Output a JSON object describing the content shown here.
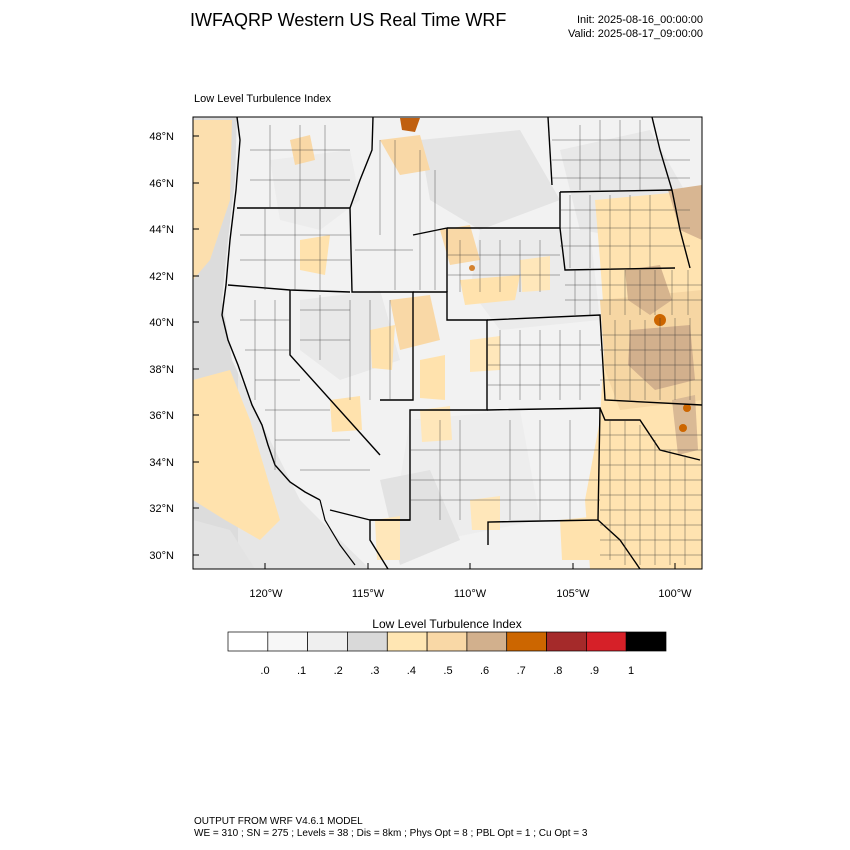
{
  "header": {
    "title": "IWFAQRP Western US Real Time WRF",
    "init": "Init: 2025-08-16_00:00:00",
    "valid": "Valid: 2025-08-17_09:00:00"
  },
  "map": {
    "subtitle": "Low Level Turbulence Index",
    "lat_labels": [
      "48°N",
      "46°N",
      "44°N",
      "42°N",
      "40°N",
      "38°N",
      "36°N",
      "34°N",
      "32°N",
      "30°N"
    ],
    "lon_labels": [
      "120°W",
      "115°W",
      "110°W",
      "105°W",
      "100°W"
    ]
  },
  "colorbar": {
    "title": "Low Level Turbulence Index",
    "labels": [
      ".0",
      ".1",
      ".2",
      ".3",
      ".4",
      ".5",
      ".6",
      ".7",
      ".8",
      ".9",
      "1"
    ],
    "colors": [
      "#ffffff",
      "#f7f7f7",
      "#efefef",
      "#d9d9d9",
      "#ffe6b3",
      "#f9d8a6",
      "#d2b08d",
      "#cc6600",
      "#a52a2a",
      "#d62028",
      "#000000"
    ]
  },
  "footer": {
    "line1": "OUTPUT FROM WRF V4.6.1 MODEL",
    "line2": "WE = 310 ; SN = 275 ; Levels = 38 ; Dis = 8km ; Phys Opt = 8 ; PBL Opt = 1 ; Cu Opt = 3"
  }
}
